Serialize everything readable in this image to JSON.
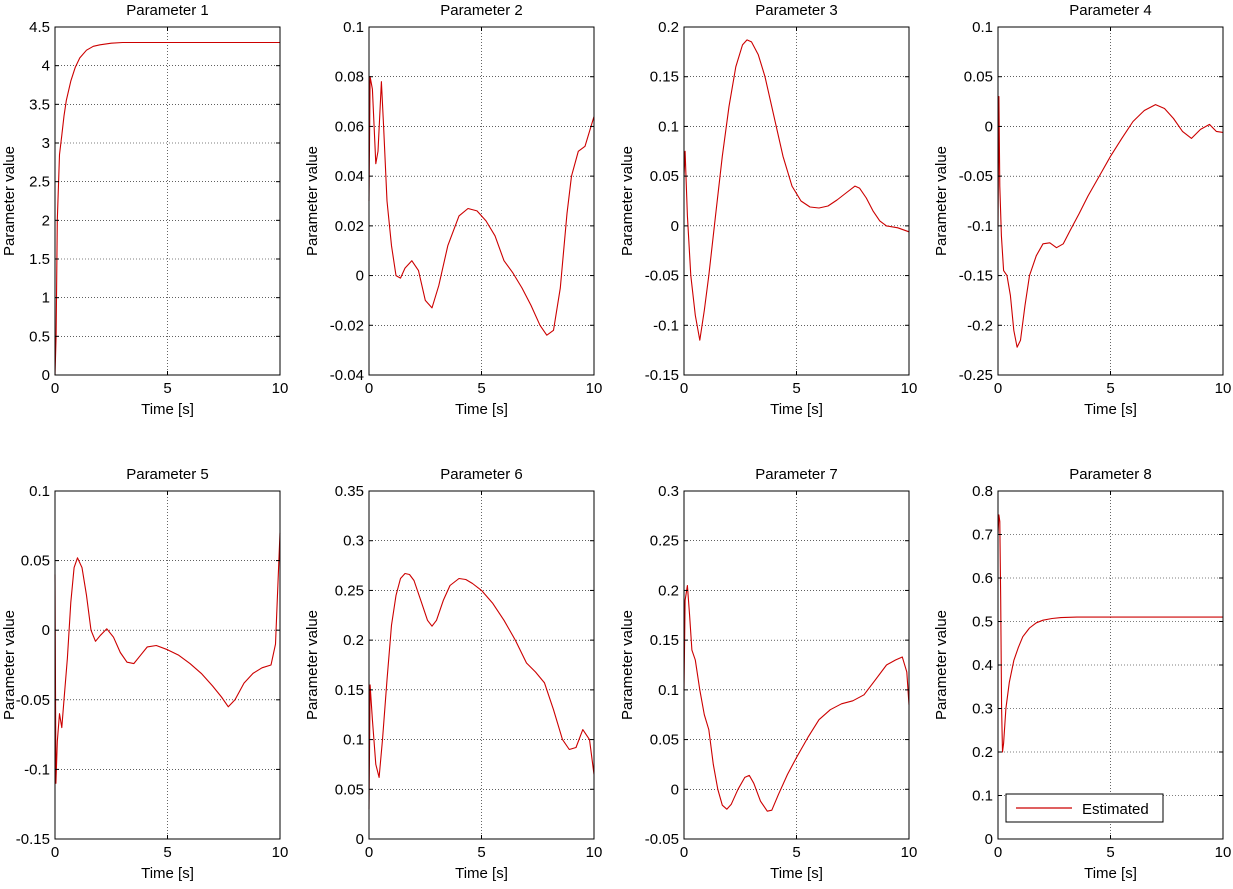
{
  "series_color": "#cc0000",
  "chart_data": [
    {
      "type": "line",
      "title": "Parameter 1",
      "xlabel": "Time [s]",
      "ylabel": "Parameter value",
      "xlim": [
        0,
        10
      ],
      "ylim": [
        0,
        4.5
      ],
      "xticks": [
        0,
        5,
        10
      ],
      "yticks": [
        0,
        0.5,
        1,
        1.5,
        2,
        2.5,
        3,
        3.5,
        4,
        4.5
      ],
      "ytick_labels": [
        "0",
        "0.5",
        "1",
        "1.5",
        "2",
        "2.5",
        "3",
        "3.5",
        "4",
        "4.5"
      ],
      "grid": true,
      "series": [
        {
          "name": "Estimated",
          "x": [
            0,
            0.05,
            0.1,
            0.2,
            0.3,
            0.4,
            0.5,
            0.7,
            0.9,
            1.1,
            1.4,
            1.7,
            2.0,
            2.5,
            3.0,
            4.0,
            5.0,
            7.0,
            10.0
          ],
          "y": [
            0,
            0.5,
            2.0,
            2.85,
            3.1,
            3.35,
            3.55,
            3.8,
            3.98,
            4.1,
            4.2,
            4.25,
            4.27,
            4.29,
            4.3,
            4.3,
            4.3,
            4.3,
            4.3
          ]
        }
      ],
      "legend": null
    },
    {
      "type": "line",
      "title": "Parameter 2",
      "xlabel": "Time [s]",
      "ylabel": "Parameter value",
      "xlim": [
        0,
        10
      ],
      "ylim": [
        -0.04,
        0.1
      ],
      "xticks": [
        0,
        5,
        10
      ],
      "yticks": [
        -0.04,
        -0.02,
        0,
        0.02,
        0.04,
        0.06,
        0.08,
        0.1
      ],
      "ytick_labels": [
        "-0.04",
        "-0.02",
        "0",
        "0.02",
        "0.04",
        "0.06",
        "0.08",
        "0.1"
      ],
      "grid": true,
      "series": [
        {
          "name": "Estimated",
          "x": [
            0,
            0.05,
            0.15,
            0.3,
            0.4,
            0.55,
            0.65,
            0.8,
            1.0,
            1.2,
            1.4,
            1.6,
            1.9,
            2.2,
            2.5,
            2.8,
            3.1,
            3.5,
            4.0,
            4.4,
            4.8,
            5.2,
            5.6,
            6.0,
            6.4,
            6.8,
            7.2,
            7.6,
            7.9,
            8.2,
            8.5,
            8.8,
            9.0,
            9.3,
            9.6,
            10.0
          ],
          "y": [
            0.03,
            0.08,
            0.075,
            0.045,
            0.05,
            0.078,
            0.06,
            0.03,
            0.012,
            0.0,
            -0.001,
            0.003,
            0.006,
            0.002,
            -0.01,
            -0.013,
            -0.004,
            0.012,
            0.024,
            0.027,
            0.026,
            0.022,
            0.016,
            0.006,
            0.001,
            -0.005,
            -0.012,
            -0.02,
            -0.024,
            -0.022,
            -0.005,
            0.025,
            0.04,
            0.05,
            0.052,
            0.064
          ]
        }
      ],
      "legend": null
    },
    {
      "type": "line",
      "title": "Parameter 3",
      "xlabel": "Time [s]",
      "ylabel": "Parameter value",
      "xlim": [
        0,
        10
      ],
      "ylim": [
        -0.15,
        0.2
      ],
      "xticks": [
        0,
        5,
        10
      ],
      "yticks": [
        -0.15,
        -0.1,
        -0.05,
        0,
        0.05,
        0.1,
        0.15,
        0.2
      ],
      "ytick_labels": [
        "-0.15",
        "-0.1",
        "-0.05",
        "0",
        "0.05",
        "0.1",
        "0.15",
        "0.2"
      ],
      "grid": true,
      "series": [
        {
          "name": "Estimated",
          "x": [
            0,
            0.05,
            0.15,
            0.3,
            0.5,
            0.7,
            0.9,
            1.1,
            1.4,
            1.7,
            2.0,
            2.3,
            2.6,
            2.8,
            3.0,
            3.3,
            3.6,
            4.0,
            4.4,
            4.8,
            5.2,
            5.6,
            6.0,
            6.4,
            6.8,
            7.2,
            7.6,
            7.8,
            8.1,
            8.4,
            8.7,
            9.0,
            9.5,
            10.0
          ],
          "y": [
            0.05,
            0.075,
            0.01,
            -0.05,
            -0.09,
            -0.115,
            -0.085,
            -0.05,
            0.01,
            0.07,
            0.12,
            0.16,
            0.182,
            0.187,
            0.185,
            0.172,
            0.15,
            0.11,
            0.07,
            0.04,
            0.025,
            0.019,
            0.018,
            0.02,
            0.026,
            0.033,
            0.04,
            0.038,
            0.028,
            0.015,
            0.005,
            0.0,
            -0.002,
            -0.006
          ]
        }
      ],
      "legend": null
    },
    {
      "type": "line",
      "title": "Parameter 4",
      "xlabel": "Time [s]",
      "ylabel": "Parameter value",
      "xlim": [
        0,
        10
      ],
      "ylim": [
        -0.25,
        0.1
      ],
      "xticks": [
        0,
        5,
        10
      ],
      "yticks": [
        -0.25,
        -0.2,
        -0.15,
        -0.1,
        -0.05,
        0,
        0.05,
        0.1
      ],
      "ytick_labels": [
        "-0.25",
        "-0.2",
        "-0.15",
        "-0.1",
        "-0.05",
        "0",
        "0.05",
        "0.1"
      ],
      "grid": true,
      "series": [
        {
          "name": "Estimated",
          "x": [
            0,
            0.04,
            0.08,
            0.15,
            0.25,
            0.4,
            0.55,
            0.7,
            0.85,
            1.0,
            1.2,
            1.4,
            1.7,
            2.0,
            2.3,
            2.6,
            2.9,
            3.2,
            3.6,
            4.0,
            4.5,
            5.0,
            5.5,
            6.0,
            6.5,
            7.0,
            7.4,
            7.8,
            8.2,
            8.6,
            9.0,
            9.4,
            9.7,
            10.0
          ],
          "y": [
            -0.1,
            0.03,
            -0.06,
            -0.11,
            -0.145,
            -0.15,
            -0.17,
            -0.205,
            -0.222,
            -0.215,
            -0.18,
            -0.15,
            -0.13,
            -0.118,
            -0.117,
            -0.122,
            -0.118,
            -0.105,
            -0.088,
            -0.07,
            -0.05,
            -0.03,
            -0.012,
            0.005,
            0.016,
            0.022,
            0.018,
            0.008,
            -0.005,
            -0.012,
            -0.003,
            0.002,
            -0.005,
            -0.006
          ]
        }
      ],
      "legend": null
    },
    {
      "type": "line",
      "title": "Parameter 5",
      "xlabel": "Time [s]",
      "ylabel": "Parameter value",
      "xlim": [
        0,
        10
      ],
      "ylim": [
        -0.15,
        0.1
      ],
      "xticks": [
        0,
        5,
        10
      ],
      "yticks": [
        -0.15,
        -0.1,
        -0.05,
        0,
        0.05,
        0.1
      ],
      "ytick_labels": [
        "-0.15",
        "-0.1",
        "-0.05",
        "0",
        "0.05",
        "0.1"
      ],
      "grid": true,
      "series": [
        {
          "name": "Estimated",
          "x": [
            0,
            0.04,
            0.1,
            0.2,
            0.3,
            0.4,
            0.55,
            0.7,
            0.85,
            1.0,
            1.2,
            1.4,
            1.6,
            1.8,
            2.0,
            2.3,
            2.6,
            2.9,
            3.2,
            3.5,
            3.8,
            4.1,
            4.5,
            5.0,
            5.5,
            6.0,
            6.5,
            7.0,
            7.4,
            7.7,
            8.0,
            8.4,
            8.8,
            9.2,
            9.6,
            9.8,
            10.0
          ],
          "y": [
            0.04,
            -0.11,
            -0.08,
            -0.06,
            -0.07,
            -0.05,
            -0.02,
            0.02,
            0.045,
            0.052,
            0.045,
            0.025,
            0.0,
            -0.008,
            -0.004,
            0.001,
            -0.005,
            -0.016,
            -0.023,
            -0.024,
            -0.018,
            -0.012,
            -0.011,
            -0.014,
            -0.018,
            -0.024,
            -0.031,
            -0.04,
            -0.048,
            -0.055,
            -0.05,
            -0.038,
            -0.031,
            -0.027,
            -0.025,
            -0.01,
            0.07
          ]
        }
      ],
      "legend": null
    },
    {
      "type": "line",
      "title": "Parameter 6",
      "xlabel": "Time [s]",
      "ylabel": "Parameter value",
      "xlim": [
        0,
        10
      ],
      "ylim": [
        0,
        0.35
      ],
      "xticks": [
        0,
        5,
        10
      ],
      "yticks": [
        0,
        0.05,
        0.1,
        0.15,
        0.2,
        0.25,
        0.3,
        0.35
      ],
      "ytick_labels": [
        "0",
        "0.05",
        "0.1",
        "0.15",
        "0.2",
        "0.25",
        "0.3",
        "0.35"
      ],
      "grid": true,
      "series": [
        {
          "name": "Estimated",
          "x": [
            0,
            0.05,
            0.15,
            0.3,
            0.45,
            0.6,
            0.8,
            1.0,
            1.2,
            1.4,
            1.6,
            1.8,
            2.0,
            2.3,
            2.6,
            2.8,
            3.0,
            3.3,
            3.6,
            4.0,
            4.3,
            4.6,
            5.0,
            5.5,
            6.0,
            6.5,
            7.0,
            7.4,
            7.8,
            8.2,
            8.6,
            8.9,
            9.2,
            9.5,
            9.8,
            10.0
          ],
          "y": [
            0.03,
            0.155,
            0.12,
            0.075,
            0.062,
            0.1,
            0.16,
            0.215,
            0.245,
            0.262,
            0.267,
            0.266,
            0.26,
            0.24,
            0.22,
            0.214,
            0.22,
            0.24,
            0.255,
            0.262,
            0.261,
            0.257,
            0.25,
            0.237,
            0.22,
            0.2,
            0.177,
            0.168,
            0.157,
            0.13,
            0.1,
            0.09,
            0.092,
            0.11,
            0.1,
            0.065
          ]
        }
      ],
      "legend": null
    },
    {
      "type": "line",
      "title": "Parameter 7",
      "xlabel": "Time [s]",
      "ylabel": "Parameter value",
      "xlim": [
        0,
        10
      ],
      "ylim": [
        -0.05,
        0.3
      ],
      "xticks": [
        0,
        5,
        10
      ],
      "yticks": [
        -0.05,
        0,
        0.05,
        0.1,
        0.15,
        0.2,
        0.25,
        0.3
      ],
      "ytick_labels": [
        "-0.05",
        "0",
        "0.05",
        "0.1",
        "0.15",
        "0.2",
        "0.25",
        "0.3"
      ],
      "grid": true,
      "series": [
        {
          "name": "Estimated",
          "x": [
            0,
            0.05,
            0.15,
            0.25,
            0.35,
            0.5,
            0.7,
            0.9,
            1.1,
            1.3,
            1.5,
            1.7,
            1.9,
            2.1,
            2.4,
            2.7,
            2.9,
            3.1,
            3.4,
            3.7,
            3.9,
            4.2,
            4.6,
            5.0,
            5.5,
            6.0,
            6.5,
            7.0,
            7.5,
            8.0,
            8.5,
            9.0,
            9.4,
            9.7,
            9.9,
            10.0
          ],
          "y": [
            0.1,
            0.19,
            0.205,
            0.175,
            0.14,
            0.13,
            0.1,
            0.075,
            0.06,
            0.025,
            0.0,
            -0.016,
            -0.02,
            -0.015,
            0.0,
            0.012,
            0.014,
            0.006,
            -0.012,
            -0.022,
            -0.021,
            -0.005,
            0.015,
            0.032,
            0.052,
            0.07,
            0.08,
            0.086,
            0.089,
            0.095,
            0.11,
            0.125,
            0.13,
            0.133,
            0.118,
            0.085
          ]
        }
      ],
      "legend": null
    },
    {
      "type": "line",
      "title": "Parameter 8",
      "xlabel": "Time [s]",
      "ylabel": "Parameter value",
      "xlim": [
        0,
        10
      ],
      "ylim": [
        0,
        0.8
      ],
      "xticks": [
        0,
        5,
        10
      ],
      "yticks": [
        0,
        0.1,
        0.2,
        0.3,
        0.4,
        0.5,
        0.6,
        0.7,
        0.8
      ],
      "ytick_labels": [
        "0",
        "0.1",
        "0.2",
        "0.3",
        "0.4",
        "0.5",
        "0.6",
        "0.7",
        "0.8"
      ],
      "grid": true,
      "series": [
        {
          "name": "Estimated",
          "x": [
            0,
            0.04,
            0.08,
            0.12,
            0.16,
            0.2,
            0.25,
            0.35,
            0.5,
            0.7,
            0.9,
            1.1,
            1.4,
            1.7,
            2.0,
            2.4,
            2.8,
            3.5,
            5.0,
            7.0,
            10.0
          ],
          "y": [
            0.7,
            0.745,
            0.73,
            0.55,
            0.3,
            0.2,
            0.22,
            0.3,
            0.36,
            0.41,
            0.44,
            0.465,
            0.485,
            0.497,
            0.503,
            0.507,
            0.509,
            0.51,
            0.51,
            0.51,
            0.51
          ]
        }
      ],
      "legend": {
        "label": "Estimated",
        "location": "lower-left"
      }
    }
  ]
}
